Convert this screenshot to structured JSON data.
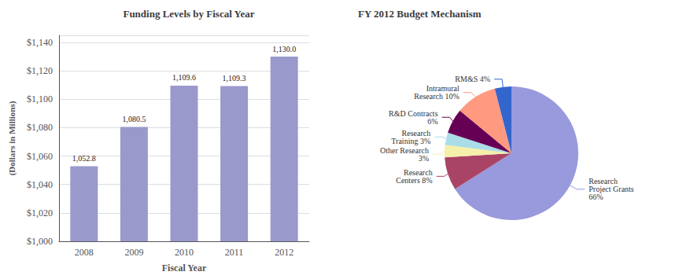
{
  "chart_data": [
    {
      "type": "bar",
      "title": "Funding Levels by Fiscal Year",
      "xlabel": "Fiscal Year",
      "ylabel": "(Dollars in Millions)",
      "categories": [
        "2008",
        "2009",
        "2010",
        "2011",
        "2012"
      ],
      "values": [
        1052.8,
        1080.5,
        1109.6,
        1109.3,
        1130.0
      ],
      "value_labels": [
        "1,052.8",
        "1,080.5",
        "1,109.6",
        "1,109.3",
        "1,130.0"
      ],
      "data_labels": true,
      "color": "#9999cc",
      "ylim": [
        1000,
        1145
      ],
      "yticks": [
        {
          "value": 1000,
          "label": "$1,000"
        },
        {
          "value": 1020,
          "label": "$1,020"
        },
        {
          "value": 1040,
          "label": "$1,040"
        },
        {
          "value": 1060,
          "label": "$1,060"
        },
        {
          "value": 1080,
          "label": "$1,080"
        },
        {
          "value": 1100,
          "label": "$1,100"
        },
        {
          "value": 1120,
          "label": "$1,120"
        },
        {
          "value": 1140,
          "label": "$1,140"
        }
      ],
      "grid": true
    },
    {
      "type": "pie",
      "title": "FY 2012 Budget Mechanism",
      "categories": [
        "Research\nProject Grants\n66%",
        "Research\nCenters 8%",
        "Other Research\n3%",
        "Research\nTraining 3%",
        "R&D Contracts\n6%",
        "Intramural\nResearch 10%",
        "RM&S 4%"
      ],
      "values": [
        66,
        8,
        3,
        3,
        6,
        10,
        4
      ],
      "colors": [
        "#9999dd",
        "#aa4466",
        "#f5f0aa",
        "#aadde8",
        "#660055",
        "#ff9980",
        "#3366cc"
      ]
    }
  ]
}
